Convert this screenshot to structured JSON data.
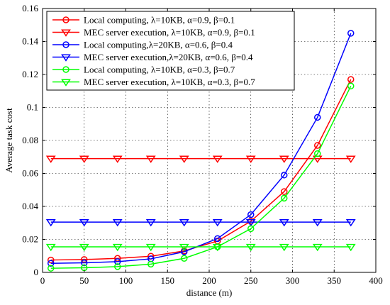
{
  "chart_data": {
    "type": "line",
    "title": "",
    "xlabel": "distance  (m)",
    "ylabel": "Average task cost",
    "xlim": [
      0,
      400
    ],
    "ylim": [
      0,
      0.16
    ],
    "xticks": [
      0,
      50,
      100,
      150,
      200,
      250,
      300,
      350,
      400
    ],
    "yticks": [
      0,
      0.02,
      0.04,
      0.06,
      0.08,
      0.1,
      0.12,
      0.14,
      0.16
    ],
    "xtick_labels": [
      "0",
      "50",
      "100",
      "150",
      "200",
      "250",
      "300",
      "350",
      "400"
    ],
    "ytick_labels": [
      "0",
      "0.02",
      "0.04",
      "0.06",
      "0.08",
      "0.1",
      "0.12",
      "0.14",
      "0.16"
    ],
    "grid": true,
    "legend_position": "top-left",
    "x": [
      10,
      50,
      90,
      130,
      170,
      210,
      250,
      290,
      330,
      370
    ],
    "series": [
      {
        "name": "Local computing, λ=10KB, α=0.9, β=0.1",
        "color": "#ff0000",
        "marker": "circle",
        "values": [
          0.0075,
          0.0078,
          0.0085,
          0.0098,
          0.013,
          0.019,
          0.031,
          0.049,
          0.077,
          0.117
        ]
      },
      {
        "name": "MEC server execution, λ=10KB, α=0.9, β=0.1",
        "color": "#ff0000",
        "marker": "triangle-down",
        "values": [
          0.069,
          0.069,
          0.069,
          0.069,
          0.069,
          0.069,
          0.069,
          0.069,
          0.069,
          0.069
        ]
      },
      {
        "name": "Local computing,λ=20KB, α=0.6, β=0.4",
        "color": "#0000ff",
        "marker": "circle",
        "values": [
          0.0055,
          0.0058,
          0.0065,
          0.0082,
          0.0125,
          0.0205,
          0.035,
          0.059,
          0.094,
          0.145
        ]
      },
      {
        "name": "MEC server execution,λ=20KB, α=0.6, β=0.4",
        "color": "#0000ff",
        "marker": "triangle-down",
        "values": [
          0.0305,
          0.0305,
          0.0305,
          0.0305,
          0.0305,
          0.0305,
          0.0305,
          0.0305,
          0.0305,
          0.0305
        ]
      },
      {
        "name": "Local computing, λ=10KB, α=0.3, β=0.7",
        "color": "#00ff00",
        "marker": "circle",
        "values": [
          0.0025,
          0.0028,
          0.0035,
          0.005,
          0.0085,
          0.0155,
          0.0265,
          0.045,
          0.072,
          0.113
        ]
      },
      {
        "name": "MEC server execution, λ=10KB, α=0.3, β=0.7",
        "color": "#00ff00",
        "marker": "triangle-down",
        "values": [
          0.0155,
          0.0155,
          0.0155,
          0.0155,
          0.0155,
          0.0155,
          0.0155,
          0.0155,
          0.0155,
          0.0155
        ]
      }
    ]
  }
}
